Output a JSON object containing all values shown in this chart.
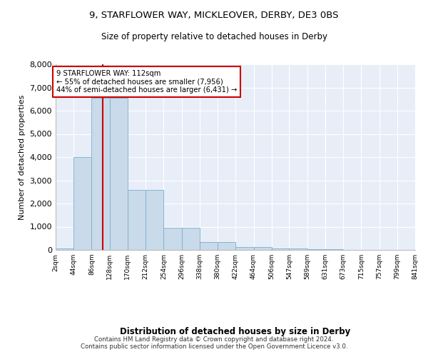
{
  "title_line1": "9, STARFLOWER WAY, MICKLEOVER, DERBY, DE3 0BS",
  "title_line2": "Size of property relative to detached houses in Derby",
  "xlabel": "Distribution of detached houses by size in Derby",
  "ylabel": "Number of detached properties",
  "bar_color": "#c9daea",
  "bar_edge_color": "#7aaed0",
  "background_color": "#e8eef8",
  "annotation_text": "9 STARFLOWER WAY: 112sqm\n← 55% of detached houses are smaller (7,956)\n44% of semi-detached houses are larger (6,431) →",
  "annotation_box_color": "#ffffff",
  "annotation_box_edge": "#cc0000",
  "vline_x": 112,
  "vline_color": "#cc0000",
  "footer_text": "Contains HM Land Registry data © Crown copyright and database right 2024.\nContains public sector information licensed under the Open Government Licence v3.0.",
  "bins": [
    2,
    44,
    86,
    128,
    170,
    212,
    254,
    296,
    338,
    380,
    422,
    464,
    506,
    547,
    589,
    631,
    673,
    715,
    757,
    799,
    841
  ],
  "values": [
    75,
    4000,
    6550,
    6550,
    2600,
    2600,
    950,
    950,
    325,
    325,
    125,
    125,
    75,
    75,
    35,
    35,
    8,
    8,
    4,
    4
  ],
  "ylim": [
    0,
    8000
  ],
  "yticks": [
    0,
    1000,
    2000,
    3000,
    4000,
    5000,
    6000,
    7000,
    8000
  ]
}
